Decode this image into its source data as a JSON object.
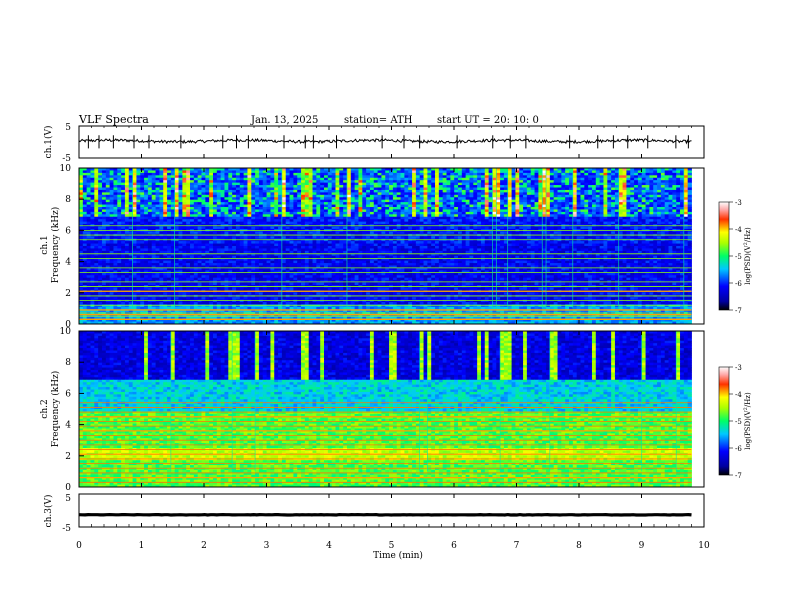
{
  "header": {
    "title": "VLF  Spectra",
    "date": "Jan. 13, 2025",
    "station": "station= ATH",
    "start": "start  UT  =   20: 10: 0"
  },
  "chart_data": [
    {
      "type": "line",
      "name": "ch1-waveform",
      "ylabel": "ch.1(V)",
      "ylim": [
        -5,
        5
      ],
      "yticks": [
        "5",
        "-5"
      ],
      "xlim": [
        0,
        10
      ],
      "x_end": 9.8,
      "baseline": 0.3,
      "noise": 0.45,
      "spikes_min": [
        0.15,
        0.32,
        0.55,
        0.88,
        1.12,
        1.63,
        2.3,
        2.52,
        2.71,
        3.28,
        3.62,
        3.75,
        4.12,
        4.85,
        5.2,
        5.45,
        6.05,
        6.62,
        6.9,
        7.15,
        7.85,
        8.3,
        8.55,
        8.78,
        9.1,
        9.55,
        9.75
      ]
    },
    {
      "type": "heatmap",
      "name": "ch1-spectrogram",
      "ylabel": "ch.1\nFrequency (kHz)",
      "ylim": [
        0,
        10
      ],
      "yticks": [
        "10",
        "8",
        "6",
        "4",
        "2",
        "0"
      ],
      "xlim": [
        0,
        10
      ],
      "x_end": 9.8,
      "colorbar": {
        "label": "log(PSD)(V²/Hz)",
        "range": [
          -7,
          -3
        ],
        "ticks": [
          "-3",
          "-4",
          "-5",
          "-6",
          "-7"
        ]
      },
      "lines_khz": [
        0.3,
        0.5,
        0.7,
        0.9,
        1.2,
        1.5,
        1.8,
        2.1,
        2.4,
        2.7,
        3.3,
        3.6,
        4.2,
        4.5,
        5.4,
        5.7,
        6.0,
        6.3
      ],
      "strong_lines_khz": [
        0.3,
        0.6,
        0.9,
        2.1
      ],
      "background_level": -6.2
    },
    {
      "type": "heatmap",
      "name": "ch2-spectrogram",
      "ylabel": "ch.2\nFrequency (kHz)",
      "ylim": [
        0,
        10
      ],
      "yticks": [
        "10",
        "8",
        "6",
        "4",
        "2",
        "0"
      ],
      "xlim": [
        0,
        10
      ],
      "x_end": 9.8,
      "colorbar": {
        "label": "log(PSD)(V²/Hz)",
        "range": [
          -7,
          -3
        ],
        "ticks": [
          "-3",
          "-4",
          "-5",
          "-6",
          "-7"
        ]
      },
      "lines_khz": [
        0.3,
        0.6,
        0.9,
        1.2,
        1.5,
        1.8,
        2.1,
        2.4,
        2.7,
        3.0,
        3.3,
        3.6,
        3.9,
        4.2,
        4.5,
        4.8,
        5.1,
        5.4
      ],
      "strong_lines_khz": [
        2.1,
        3.6,
        4.5,
        0.6
      ],
      "background_level": -5.4
    },
    {
      "type": "line",
      "name": "ch3-waveform",
      "ylabel": "ch.3(V)",
      "ylim": [
        -5,
        5
      ],
      "yticks": [
        "5",
        "-5"
      ],
      "xlim": [
        0,
        10
      ],
      "x_end": 9.8,
      "baseline": -1.3,
      "noise": 0.12
    }
  ],
  "xaxis": {
    "label": "Time  (min)",
    "ticks": [
      "0",
      "1",
      "2",
      "3",
      "4",
      "5",
      "6",
      "7",
      "8",
      "9",
      "10"
    ]
  },
  "colors": {
    "axis": "#000000",
    "background": "#ffffff"
  }
}
